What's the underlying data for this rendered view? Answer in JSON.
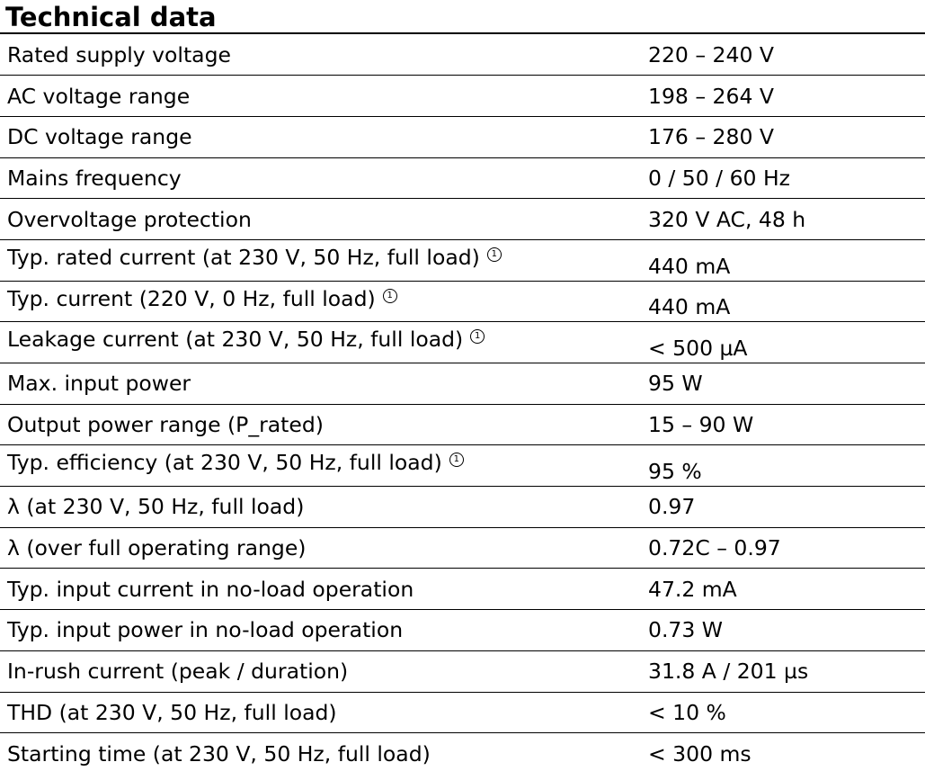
{
  "title": "Technical data",
  "footnote_marker": "1",
  "rows": [
    {
      "label": "Rated supply voltage",
      "value": "220 – 240 V"
    },
    {
      "label": "AC voltage range",
      "value": "198 – 264 V"
    },
    {
      "label": "DC voltage range",
      "value": "176 – 280 V"
    },
    {
      "label": "Mains frequency",
      "value": "0 / 50 / 60 Hz"
    },
    {
      "label": "Overvoltage protection",
      "value": "320 V AC, 48 h"
    },
    {
      "label": "Typ. rated current (at 230 V, 50 Hz, full load)",
      "value": "440 mA"
    },
    {
      "label": "Typ. current (220 V, 0 Hz, full load)",
      "value": "440 mA"
    },
    {
      "label": "Leakage current (at 230 V, 50 Hz, full load)",
      "value": "< 500 µA"
    },
    {
      "label": "Max. input power",
      "value": "95 W"
    },
    {
      "label": "Output power range (P_rated)",
      "value": "15 – 90 W"
    },
    {
      "label": "Typ. efficiency (at 230 V, 50 Hz, full load)",
      "value": "95 %"
    },
    {
      "label": "λ (at 230 V, 50 Hz, full load)",
      "value": "0.97"
    },
    {
      "label": "λ (over full operating range)",
      "value": "0.72C – 0.97"
    },
    {
      "label": "Typ. input current in no-load operation",
      "value": "47.2 mA"
    },
    {
      "label": "Typ. input power in no-load operation",
      "value": "0.73 W"
    },
    {
      "label": "In-rush current (peak / duration)",
      "value": "31.8 A / 201 µs"
    },
    {
      "label": "THD (at 230 V, 50 Hz, full load)",
      "value": "< 10 %"
    },
    {
      "label": "Starting time (at 230 V, 50 Hz, full load)",
      "value": "< 300 ms"
    }
  ]
}
